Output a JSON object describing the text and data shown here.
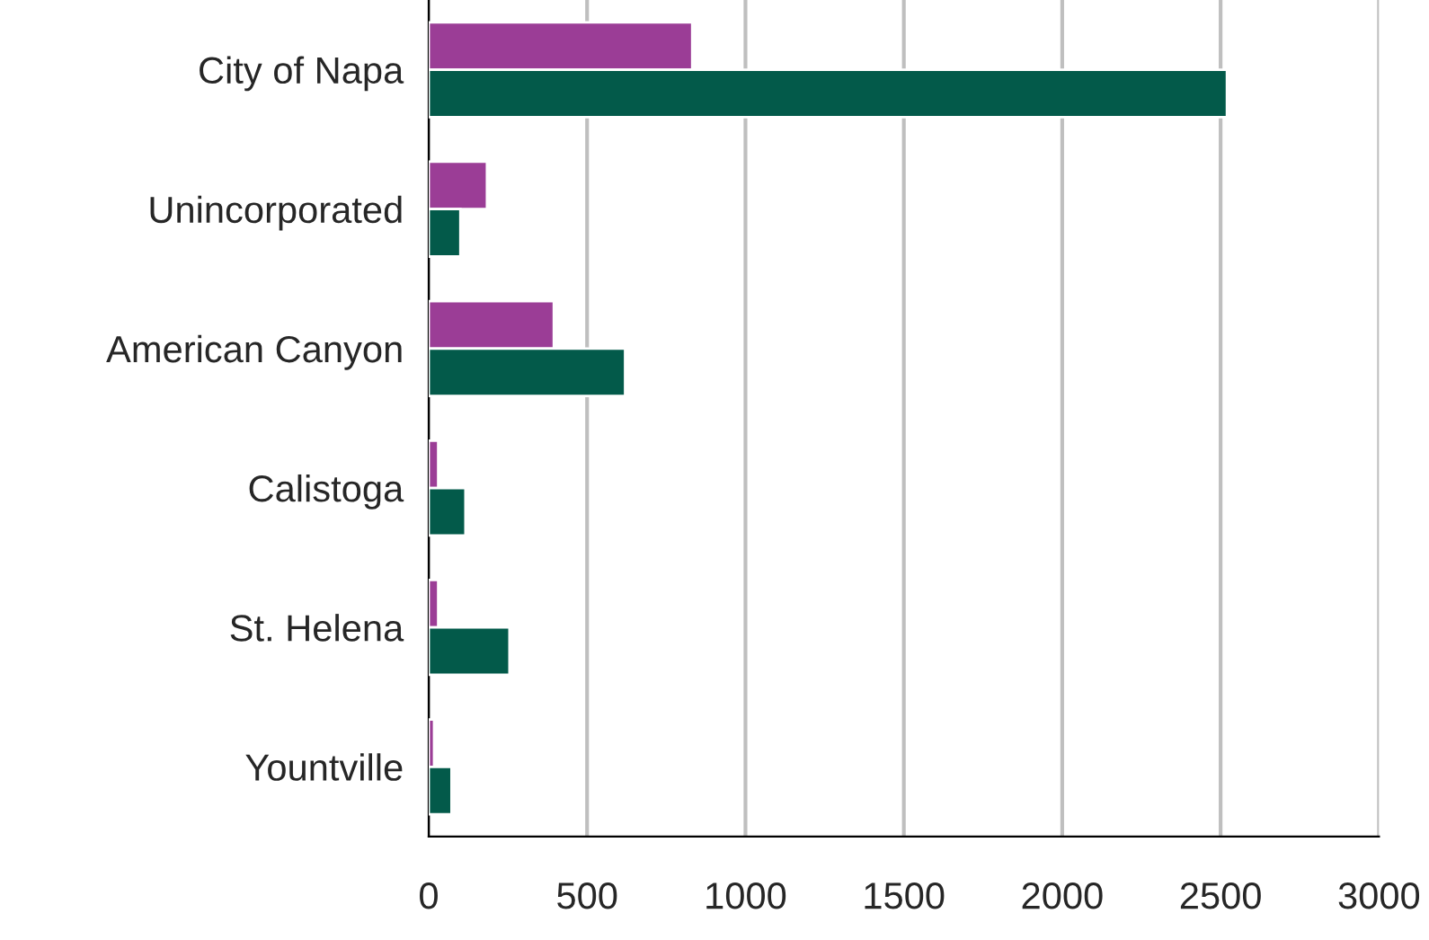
{
  "chart_data": {
    "type": "bar",
    "orientation": "horizontal",
    "categories": [
      "City of Napa",
      "Unincorporated",
      "American Canyon",
      "Calistoga",
      "St. Helena",
      "Yountville"
    ],
    "series": [
      {
        "color": "#9b3d96",
        "values": [
          832,
          184,
          395,
          30,
          30,
          17
        ]
      },
      {
        "color": "#035a4a",
        "values": [
          2520,
          100,
          620,
          116,
          255,
          72
        ]
      }
    ],
    "xlim": [
      0,
      3000
    ],
    "xticks": [
      0,
      500,
      1000,
      1500,
      2000,
      2500,
      3000
    ],
    "grid": "x"
  }
}
